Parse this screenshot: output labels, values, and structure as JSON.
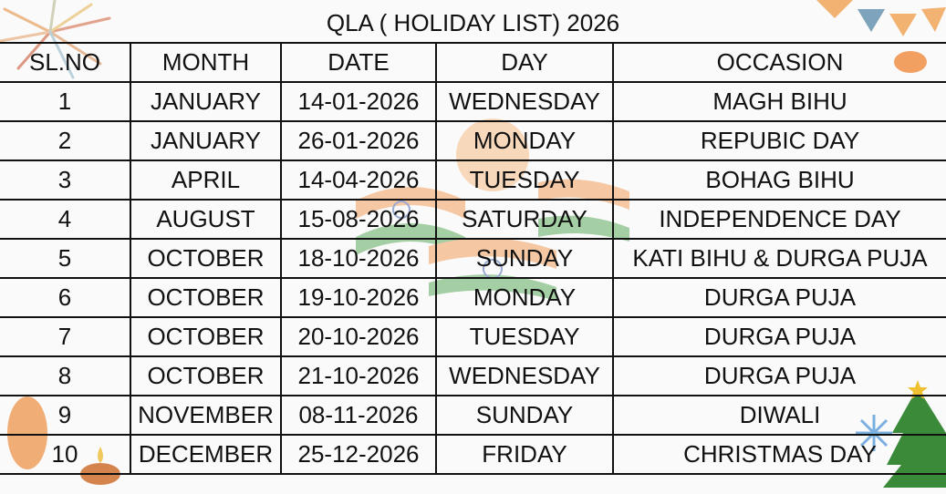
{
  "title": "QLA ( HOLIDAY LIST) 2026",
  "columns": [
    "SL.NO",
    "MONTH",
    "DATE",
    "DAY",
    "OCCASION"
  ],
  "rows": [
    [
      "1",
      "JANUARY",
      "14-01-2026",
      "WEDNESDAY",
      "MAGH BIHU"
    ],
    [
      "2",
      "JANUARY",
      "26-01-2026",
      "MONDAY",
      "REPUBIC DAY"
    ],
    [
      "3",
      "APRIL",
      "14-04-2026",
      "TUESDAY",
      "BOHAG BIHU"
    ],
    [
      "4",
      "AUGUST",
      "15-08-2026",
      "SATURDAY",
      "INDEPENDENCE DAY"
    ],
    [
      "5",
      "OCTOBER",
      "18-10-2026",
      "SUNDAY",
      "KATI BIHU & DURGA PUJA"
    ],
    [
      "6",
      "OCTOBER",
      "19-10-2026",
      "MONDAY",
      "DURGA PUJA"
    ],
    [
      "7",
      "OCTOBER",
      "20-10-2026",
      "TUESDAY",
      "DURGA PUJA"
    ],
    [
      "8",
      "OCTOBER",
      "21-10-2026",
      "WEDNESDAY",
      "DURGA PUJA"
    ],
    [
      "9",
      "NOVEMBER",
      "08-11-2026",
      "SUNDAY",
      "DIWALI"
    ],
    [
      "10",
      "DECEMBER",
      "25-12-2026",
      "FRIDAY",
      "CHRISTMAS DAY"
    ]
  ],
  "colors": {
    "saffron": "#f08a3c",
    "green": "#3d9a3d",
    "border": "#111111"
  }
}
